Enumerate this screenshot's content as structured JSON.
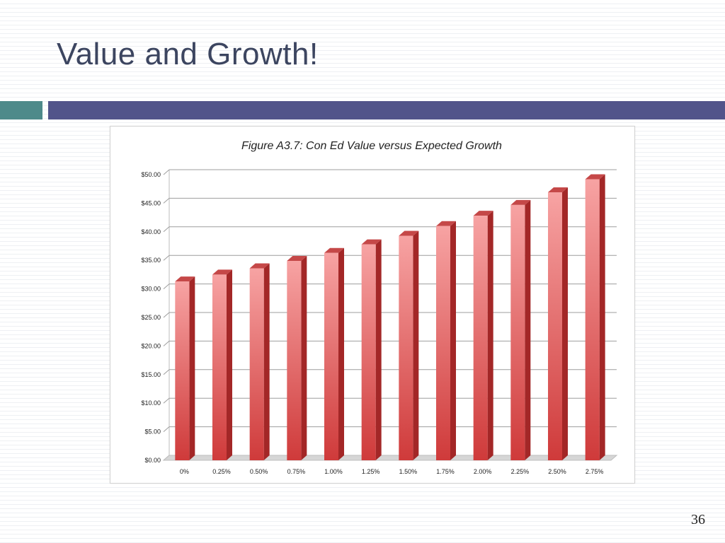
{
  "slide": {
    "title": "Value and Growth!",
    "page_number": "36"
  },
  "colors": {
    "title_text": "#3c4560",
    "accent_teal": "#4e8a8a",
    "accent_purple": "#52548a",
    "bar_front_light": "#f7a3a3",
    "bar_front_dark": "#cf3a3a",
    "bar_side": "#a32727",
    "bar_top": "#c54848"
  },
  "chart_data": {
    "type": "bar",
    "title": "Figure A3.7: Con Ed Value versus Expected Growth",
    "categories": [
      "0%",
      "0.25%",
      "0.50%",
      "0.75%",
      "1.00%",
      "1.25%",
      "1.50%",
      "1.75%",
      "2.00%",
      "2.25%",
      "2.50%",
      "2.75%"
    ],
    "values": [
      31.3,
      32.5,
      33.6,
      34.9,
      36.3,
      37.8,
      39.3,
      41.0,
      42.8,
      44.7,
      46.9,
      49.2
    ],
    "y_ticks": [
      "$0.00",
      "$5.00",
      "$10.00",
      "$15.00",
      "$20.00",
      "$25.00",
      "$30.00",
      "$35.00",
      "$40.00",
      "$45.00",
      "$50.00"
    ],
    "ylim": [
      0,
      50
    ],
    "xlabel": "",
    "ylabel": "",
    "grid": true,
    "legend": "none",
    "style": "3d-column"
  }
}
